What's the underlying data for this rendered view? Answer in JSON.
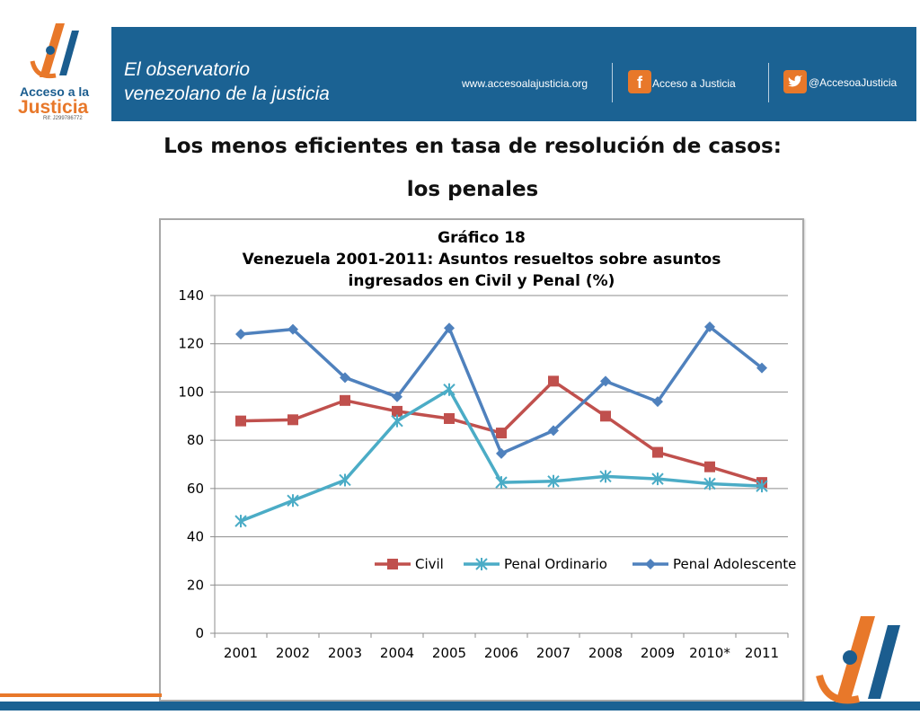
{
  "header": {
    "logo_line1": "Acceso a la",
    "logo_line2": "Justicia",
    "logo_rif": "Rif: J299786772",
    "banner_line1": "El observatorio",
    "banner_line2": "venezolano de la justicia",
    "website": "www.accesoalajusticia.org",
    "facebook": "Acceso a Justicia",
    "twitter": "@AccesoaJusticia",
    "colors": {
      "banner": "#1b6293",
      "accent": "#e8782a"
    }
  },
  "headline": {
    "line1": "Los menos eficientes en tasa de resolución de casos:",
    "line2": "los penales"
  },
  "icons": {
    "facebook": "facebook-icon",
    "twitter": "twitter-icon",
    "logo": "acceso-a-la-justicia-logo"
  },
  "chart_data": {
    "type": "line",
    "title": "Gráfico 18",
    "subtitle_line1": "Venezuela 2001-2011: Asuntos resueltos sobre asuntos",
    "subtitle_line2": "ingresados en Civil y Penal (%)",
    "categories": [
      "2001",
      "2002",
      "2003",
      "2004",
      "2005",
      "2006",
      "2007",
      "2008",
      "2009",
      "2010*",
      "2011"
    ],
    "ylim": [
      0,
      140
    ],
    "yticks": [
      "0",
      "20",
      "40",
      "60",
      "80",
      "100",
      "120",
      "140"
    ],
    "grid": true,
    "legend_position": "inside-bottom",
    "series": [
      {
        "name": "Civil",
        "color": "#c0504d",
        "marker": "square",
        "values": [
          88,
          88.5,
          96.5,
          92,
          89,
          83,
          104.5,
          90,
          75,
          69,
          62.5
        ]
      },
      {
        "name": "Penal Ordinario",
        "color": "#4bacc6",
        "marker": "star",
        "values": [
          46.5,
          55,
          63.5,
          88,
          101,
          62.5,
          63,
          65,
          64,
          62,
          61
        ]
      },
      {
        "name": "Penal Adolescente",
        "color": "#4f81bd",
        "marker": "diamond",
        "values": [
          124,
          126,
          106,
          98,
          126.5,
          74.5,
          84,
          104.5,
          96,
          127,
          110
        ]
      }
    ]
  }
}
